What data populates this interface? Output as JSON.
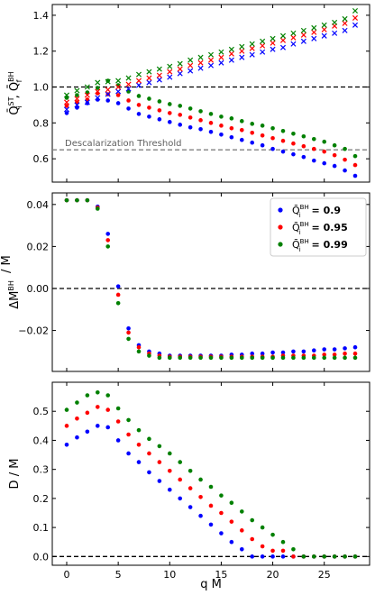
{
  "figure": {
    "xlabel": "q M",
    "xticks": [
      0,
      5,
      10,
      15,
      20,
      25
    ]
  },
  "colors": {
    "blue": "#0000ff",
    "red": "#ff0000",
    "green": "#008000",
    "ref_line": "#000000",
    "threshold_line": "#808080",
    "threshold_text": "#606060"
  },
  "chart_data": [
    {
      "type": "scatter",
      "ylabel_parts": [
        "Q̄",
        "ST",
        "i",
        " ,  ",
        "Q̄",
        "BH",
        "f"
      ],
      "xlim": [
        -1.4,
        29.4
      ],
      "ylim": [
        0.47,
        1.46
      ],
      "yticks": [
        "0.6",
        "0.8",
        "1.0",
        "1.2",
        "1.4"
      ],
      "ytick_values": [
        0.6,
        0.8,
        1.0,
        1.2,
        1.4
      ],
      "reference_line": {
        "y": 1.0,
        "style": "dashed"
      },
      "threshold": {
        "y": 0.65,
        "label": "Descalarization Threshold"
      },
      "x": [
        0,
        1,
        2,
        3,
        4,
        5,
        6,
        7,
        8,
        9,
        10,
        11,
        12,
        13,
        14,
        15,
        16,
        17,
        18,
        19,
        20,
        21,
        22,
        23,
        24,
        25,
        26,
        27,
        28
      ],
      "series": [
        {
          "color": "blue",
          "marker": "dot",
          "values": [
            0.855,
            0.885,
            0.91,
            0.93,
            0.925,
            0.91,
            0.88,
            0.85,
            0.835,
            0.82,
            0.805,
            0.79,
            0.775,
            0.765,
            0.75,
            0.735,
            0.72,
            0.705,
            0.69,
            0.675,
            0.655,
            0.64,
            0.625,
            0.61,
            0.59,
            0.575,
            0.56,
            0.535,
            0.505
          ]
        },
        {
          "color": "red",
          "marker": "dot",
          "values": [
            0.895,
            0.915,
            0.93,
            0.965,
            0.96,
            0.955,
            0.925,
            0.9,
            0.885,
            0.87,
            0.855,
            0.845,
            0.83,
            0.815,
            0.8,
            0.785,
            0.77,
            0.76,
            0.745,
            0.73,
            0.715,
            0.7,
            0.685,
            0.67,
            0.655,
            0.64,
            0.62,
            0.595,
            0.565
          ]
        },
        {
          "color": "green",
          "marker": "dot",
          "values": [
            0.94,
            0.955,
            0.97,
            0.995,
            1.035,
            1.01,
            0.975,
            0.95,
            0.935,
            0.92,
            0.905,
            0.895,
            0.88,
            0.865,
            0.85,
            0.835,
            0.825,
            0.81,
            0.795,
            0.785,
            0.77,
            0.755,
            0.74,
            0.725,
            0.71,
            0.695,
            0.675,
            0.655,
            0.615
          ]
        },
        {
          "color": "blue",
          "marker": "x",
          "values": [
            0.875,
            0.9,
            0.915,
            0.94,
            0.96,
            0.975,
            0.99,
            1.01,
            1.025,
            1.04,
            1.055,
            1.075,
            1.09,
            1.105,
            1.12,
            1.135,
            1.15,
            1.165,
            1.18,
            1.195,
            1.21,
            1.22,
            1.24,
            1.255,
            1.27,
            1.285,
            1.3,
            1.315,
            1.345
          ]
        },
        {
          "color": "red",
          "marker": "x",
          "values": [
            0.915,
            0.935,
            0.955,
            0.975,
            0.985,
            1.0,
            1.015,
            1.035,
            1.05,
            1.065,
            1.085,
            1.1,
            1.12,
            1.135,
            1.15,
            1.165,
            1.185,
            1.2,
            1.215,
            1.23,
            1.245,
            1.26,
            1.275,
            1.29,
            1.305,
            1.32,
            1.34,
            1.355,
            1.385
          ]
        },
        {
          "color": "green",
          "marker": "x",
          "values": [
            0.955,
            0.98,
            1.0,
            1.025,
            1.03,
            1.035,
            1.05,
            1.07,
            1.085,
            1.1,
            1.115,
            1.13,
            1.15,
            1.165,
            1.18,
            1.195,
            1.21,
            1.225,
            1.24,
            1.255,
            1.27,
            1.285,
            1.3,
            1.315,
            1.33,
            1.345,
            1.36,
            1.38,
            1.425
          ]
        }
      ]
    },
    {
      "type": "scatter",
      "ylabel_parts": [
        "ΔM",
        "BH",
        "",
        " / M"
      ],
      "xlim": [
        -1.4,
        29.4
      ],
      "ylim": [
        -0.0395,
        0.0455
      ],
      "yticks": [
        "−0.02",
        "0.00",
        "0.02",
        "0.04"
      ],
      "ytick_values": [
        -0.02,
        0.0,
        0.02,
        0.04
      ],
      "reference_line": {
        "y": 0.0,
        "style": "dashed"
      },
      "legend": {
        "position": "top-right",
        "entries": [
          {
            "color": "blue",
            "symbol": "Q̄",
            "sup": "BH",
            "sub": "i",
            "text": " = 0.9"
          },
          {
            "color": "red",
            "symbol": "Q̄",
            "sup": "BH",
            "sub": "i",
            "text": " = 0.95"
          },
          {
            "color": "green",
            "symbol": "Q̄",
            "sup": "BH",
            "sub": "i",
            "text": " = 0.99"
          }
        ]
      },
      "x": [
        0,
        1,
        2,
        3,
        4,
        5,
        6,
        7,
        8,
        9,
        10,
        11,
        12,
        13,
        14,
        15,
        16,
        17,
        18,
        19,
        20,
        21,
        22,
        23,
        24,
        25,
        26,
        27,
        28
      ],
      "series": [
        {
          "color": "blue",
          "values": [
            0.042,
            0.042,
            0.042,
            0.039,
            0.026,
            0.001,
            -0.019,
            -0.027,
            -0.03,
            -0.031,
            -0.032,
            -0.032,
            -0.032,
            -0.032,
            -0.032,
            -0.032,
            -0.0315,
            -0.0315,
            -0.031,
            -0.031,
            -0.0305,
            -0.0305,
            -0.03,
            -0.03,
            -0.0295,
            -0.029,
            -0.029,
            -0.0285,
            -0.028
          ]
        },
        {
          "color": "red",
          "values": [
            0.042,
            0.042,
            0.042,
            0.0385,
            0.023,
            -0.003,
            -0.021,
            -0.028,
            -0.031,
            -0.032,
            -0.0325,
            -0.0325,
            -0.0325,
            -0.0325,
            -0.0325,
            -0.0325,
            -0.0325,
            -0.0325,
            -0.0325,
            -0.0325,
            -0.0325,
            -0.032,
            -0.032,
            -0.032,
            -0.032,
            -0.0315,
            -0.0315,
            -0.031,
            -0.031
          ]
        },
        {
          "color": "green",
          "values": [
            0.042,
            0.042,
            0.042,
            0.038,
            0.02,
            -0.007,
            -0.024,
            -0.03,
            -0.032,
            -0.033,
            -0.033,
            -0.033,
            -0.033,
            -0.033,
            -0.033,
            -0.033,
            -0.033,
            -0.033,
            -0.033,
            -0.033,
            -0.033,
            -0.033,
            -0.033,
            -0.033,
            -0.033,
            -0.033,
            -0.033,
            -0.033,
            -0.033
          ]
        }
      ]
    },
    {
      "type": "scatter",
      "ylabel_parts": [
        "D / M"
      ],
      "xlim": [
        -1.4,
        29.4
      ],
      "ylim": [
        -0.03,
        0.6
      ],
      "yticks": [
        "0.0",
        "0.1",
        "0.2",
        "0.3",
        "0.4",
        "0.5"
      ],
      "ytick_values": [
        0.0,
        0.1,
        0.2,
        0.3,
        0.4,
        0.5
      ],
      "reference_line": {
        "y": 0.0,
        "style": "dashed"
      },
      "x": [
        0,
        1,
        2,
        3,
        4,
        5,
        6,
        7,
        8,
        9,
        10,
        11,
        12,
        13,
        14,
        15,
        16,
        17,
        18,
        19,
        20,
        21,
        22,
        23,
        24,
        25,
        26,
        27,
        28
      ],
      "series": [
        {
          "color": "blue",
          "values": [
            0.385,
            0.41,
            0.43,
            0.45,
            0.445,
            0.4,
            0.355,
            0.325,
            0.29,
            0.26,
            0.23,
            0.2,
            0.17,
            0.14,
            0.11,
            0.08,
            0.05,
            0.025,
            0.0,
            0.0,
            0.0,
            0.0,
            0.0,
            0.0,
            0.0,
            0.0,
            0.0,
            0.0,
            0.0
          ]
        },
        {
          "color": "red",
          "values": [
            0.45,
            0.475,
            0.495,
            0.515,
            0.505,
            0.465,
            0.42,
            0.385,
            0.355,
            0.325,
            0.295,
            0.265,
            0.235,
            0.205,
            0.175,
            0.15,
            0.12,
            0.09,
            0.06,
            0.035,
            0.02,
            0.02,
            0.0,
            0.0,
            0.0,
            0.0,
            0.0,
            0.0,
            0.0
          ]
        },
        {
          "color": "green",
          "values": [
            0.505,
            0.53,
            0.555,
            0.565,
            0.555,
            0.51,
            0.47,
            0.435,
            0.405,
            0.38,
            0.355,
            0.325,
            0.295,
            0.265,
            0.24,
            0.21,
            0.185,
            0.155,
            0.125,
            0.1,
            0.075,
            0.05,
            0.025,
            0.0,
            0.0,
            0.0,
            0.0,
            0.0,
            0.0
          ]
        }
      ]
    }
  ]
}
